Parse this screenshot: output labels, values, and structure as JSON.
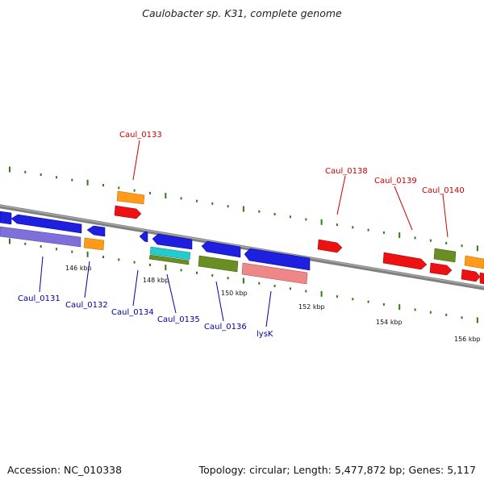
{
  "title": "Caulobacter sp. K31, complete genome",
  "footer": {
    "accession": "Accession: NC_010338",
    "summary": "Topology: circular; Length: 5,477,872 bp; Genes: 5,117"
  },
  "colors": {
    "backbone": "#888888",
    "tick": "#2e7d12",
    "label_top": "#cc0000",
    "label_bottom": "#0000aa",
    "blue": "#1f1fe0",
    "red": "#ee1111",
    "orange": "#ff9a1a",
    "olive": "#6b8e23",
    "purple": "#7f6fd8",
    "cyan": "#22cccc",
    "pink": "#ee8888"
  },
  "scale_labels": [
    "146 kbp",
    "148 kbp",
    "150 kbp",
    "152 kbp",
    "154 kbp",
    "156 kbp"
  ],
  "gene_labels_top": [
    "Caul_0133",
    "Caul_0138",
    "Caul_0139",
    "Caul_0140"
  ],
  "gene_labels_bottom": [
    "Caul_0131",
    "Caul_0132",
    "Caul_0134",
    "Caul_0135",
    "Caul_0136",
    "lysK"
  ]
}
